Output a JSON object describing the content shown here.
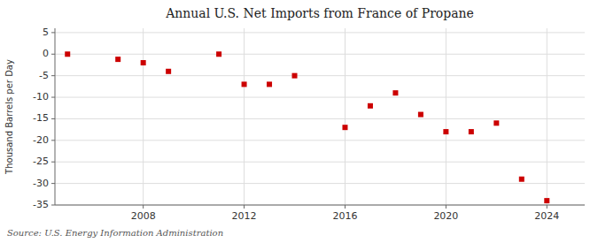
{
  "chart_data": {
    "type": "scatter",
    "title": "Annual U.S. Net Imports from France of Propane",
    "ylabel": "Thousand Barrels per Day",
    "annotations": [
      "Source: U.S. Energy Information Administration"
    ],
    "x": [
      2005,
      2007,
      2008,
      2009,
      2011,
      2012,
      2013,
      2014,
      2016,
      2017,
      2018,
      2019,
      2020,
      2021,
      2022,
      2023,
      2024
    ],
    "values": [
      0.0,
      -1.2,
      -2.0,
      -4.0,
      0.0,
      -7.0,
      -7.0,
      -5.0,
      -17.0,
      -12.0,
      -9.0,
      -14.0,
      -18.0,
      -18.0,
      -16.0,
      -29.0,
      -34.0
    ],
    "xlim": [
      2004.5,
      2025.5
    ],
    "ylim": [
      -35,
      6
    ],
    "xticks": [
      2008,
      2012,
      2016,
      2020,
      2024
    ],
    "yticks": [
      5,
      0,
      -5,
      -10,
      -15,
      -20,
      -25,
      -30,
      -35
    ],
    "color": "#cc0000",
    "marker": "square",
    "grid": true
  }
}
